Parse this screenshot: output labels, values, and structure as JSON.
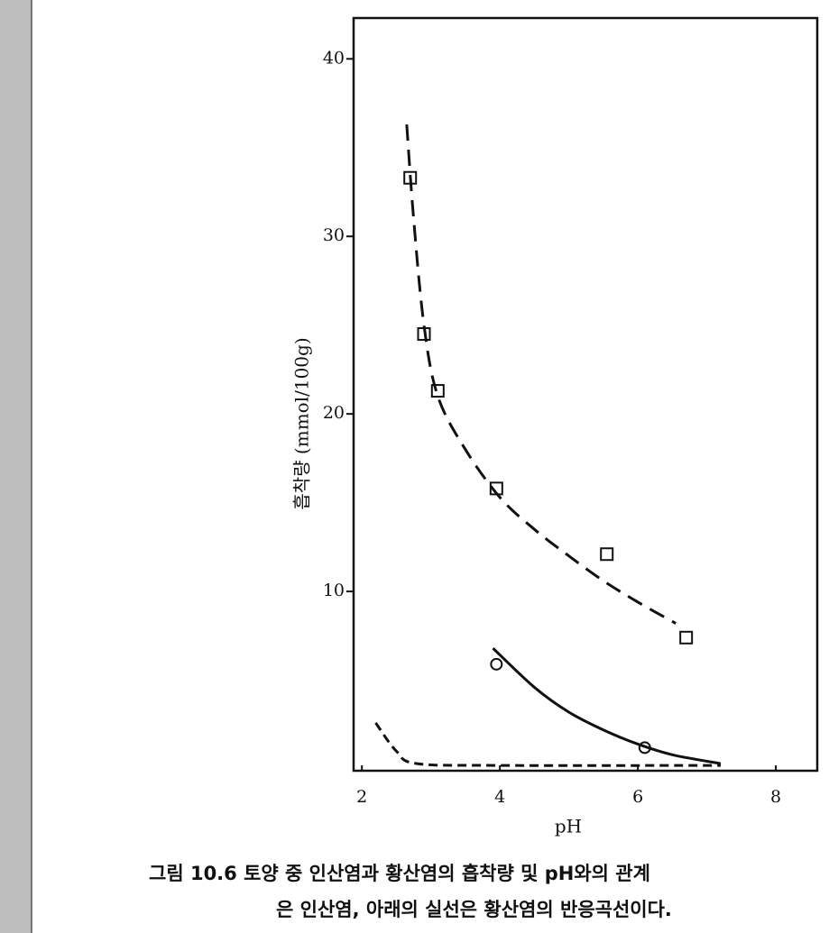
{
  "chart_data": {
    "type": "scatter",
    "x_label": "pH",
    "y_label": "흡착량 (mmol/100g)",
    "caption": [
      "그림 10.6  토양 중 인산염과 황산염의 흡착량 및 pH와의 관계",
      "은 인산염, 아래의 실선은 황산염의 반응곡선이다."
    ],
    "xlim": [
      1.88,
      8.6
    ],
    "ylim": [
      -0.1,
      42.3
    ],
    "xticks": [
      2,
      4,
      6,
      8
    ],
    "yticks": [
      10,
      20,
      30,
      40
    ],
    "series": [
      {
        "color": "#111111",
        "marker": "square",
        "x": [
          2.7,
          2.9,
          3.1,
          3.95,
          5.55,
          6.7
        ],
        "values": [
          33.3,
          24.5,
          21.3,
          15.8,
          12.1,
          7.4
        ]
      },
      {
        "color": "#111111",
        "marker": "circle",
        "x": [
          3.95,
          6.1
        ],
        "values": [
          5.9,
          1.2
        ]
      },
      {
        "color": "#111111",
        "line": "long-dash",
        "x": [
          2.65,
          2.75,
          2.9,
          3.1,
          3.5,
          4,
          4.5,
          5,
          5.5,
          6,
          6.55
        ],
        "values": [
          36.3,
          31,
          25,
          21,
          18,
          15.3,
          13.5,
          12,
          10.6,
          9.4,
          8.2
        ]
      },
      {
        "color": "#111111",
        "line": "solid",
        "x": [
          3.9,
          4.5,
          5,
          5.5,
          6,
          6.5,
          7.2
        ],
        "values": [
          6.8,
          4.6,
          3.2,
          2.2,
          1.4,
          0.8,
          0.3
        ]
      },
      {
        "color": "#111111",
        "line": "short-dash",
        "x": [
          2.2,
          2.5,
          2.8,
          4,
          7.2
        ],
        "values": [
          2.6,
          1.0,
          0.3,
          0.2,
          0.2
        ]
      }
    ]
  }
}
